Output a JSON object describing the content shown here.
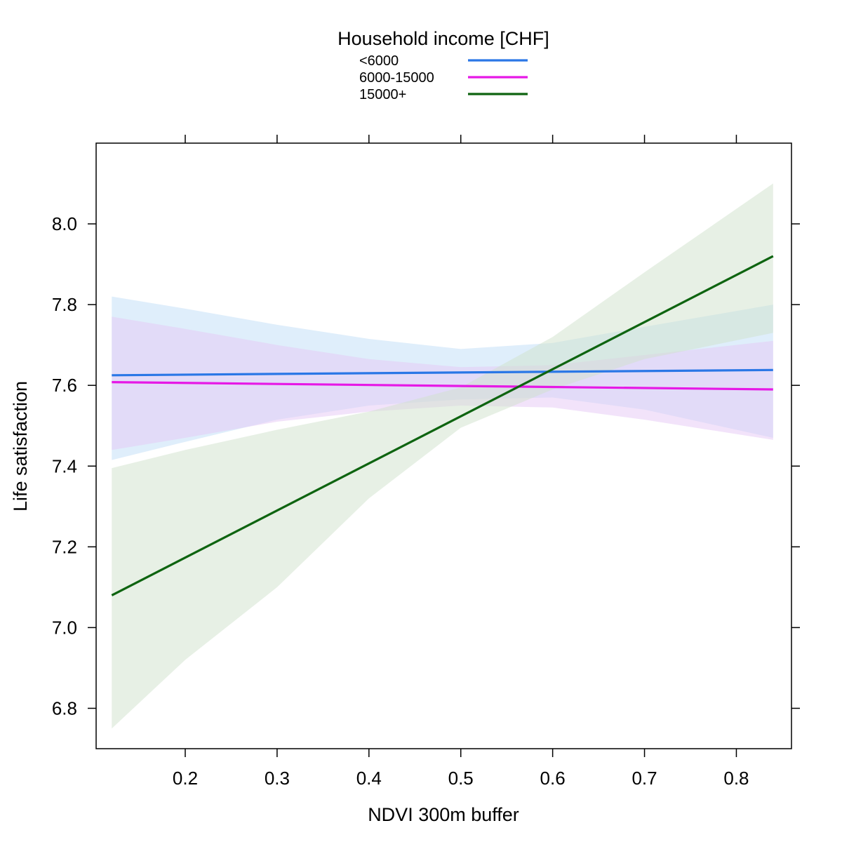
{
  "chart_data": {
    "type": "line",
    "title": "",
    "xlabel": "NDVI 300m buffer",
    "ylabel": "Life satisfaction",
    "xlim": [
      0.103,
      0.86
    ],
    "ylim": [
      6.7,
      8.2
    ],
    "xticks": [
      0.2,
      0.3,
      0.4,
      0.5,
      0.6,
      0.7,
      0.8
    ],
    "xtick_labels": [
      "0.2",
      "0.3",
      "0.4",
      "0.5",
      "0.6",
      "0.7",
      "0.8"
    ],
    "yticks": [
      6.8,
      7.0,
      7.2,
      7.4,
      7.6,
      7.8,
      8.0
    ],
    "ytick_labels": [
      "6.8",
      "7.0",
      "7.2",
      "7.4",
      "7.6",
      "7.8",
      "8.0"
    ],
    "grid": false,
    "legend": {
      "title": "Household income [CHF]",
      "placement": "top-center",
      "entries": [
        "<6000",
        "6000-15000",
        "15000+"
      ]
    },
    "series": [
      {
        "name": "<6000",
        "color": "#2A77E6",
        "band_color": "#BFDDF7",
        "x": [
          0.12,
          0.84
        ],
        "y": [
          7.625,
          7.638
        ],
        "ci_x": [
          0.12,
          0.2,
          0.3,
          0.4,
          0.5,
          0.6,
          0.7,
          0.84
        ],
        "ci_upper": [
          7.82,
          7.79,
          7.75,
          7.715,
          7.69,
          7.705,
          7.745,
          7.8
        ],
        "ci_lower": [
          7.415,
          7.46,
          7.515,
          7.55,
          7.565,
          7.57,
          7.54,
          7.47
        ]
      },
      {
        "name": "6000-15000",
        "color": "#E619E6",
        "band_color": "#E5C8F6",
        "x": [
          0.12,
          0.84
        ],
        "y": [
          7.608,
          7.59
        ],
        "ci_x": [
          0.12,
          0.2,
          0.3,
          0.4,
          0.5,
          0.6,
          0.7,
          0.84
        ],
        "ci_upper": [
          7.77,
          7.74,
          7.7,
          7.665,
          7.645,
          7.65,
          7.675,
          7.71
        ],
        "ci_lower": [
          7.44,
          7.47,
          7.51,
          7.535,
          7.55,
          7.545,
          7.515,
          7.465
        ]
      },
      {
        "name": "15000+",
        "color": "#0E6410",
        "band_color": "#CFE1CC",
        "x": [
          0.12,
          0.84
        ],
        "y": [
          7.08,
          7.92
        ],
        "ci_x": [
          0.12,
          0.2,
          0.3,
          0.4,
          0.5,
          0.6,
          0.7,
          0.84
        ],
        "ci_upper": [
          7.395,
          7.44,
          7.49,
          7.535,
          7.595,
          7.72,
          7.88,
          8.1
        ],
        "ci_lower": [
          6.75,
          6.92,
          7.1,
          7.32,
          7.495,
          7.59,
          7.665,
          7.73
        ]
      }
    ]
  }
}
